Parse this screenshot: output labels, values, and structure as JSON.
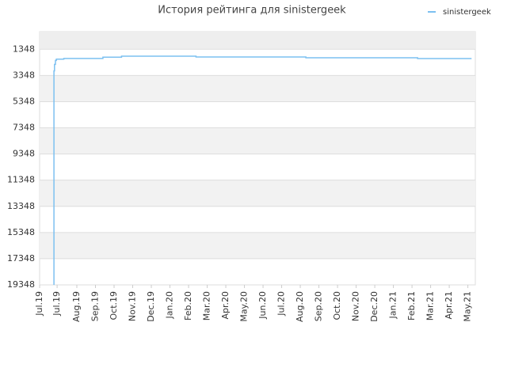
{
  "chart_data": {
    "type": "line",
    "title": "История рейтинга для sinistergeek",
    "ylim": [
      19348,
      0
    ],
    "yticks": [
      1348,
      3348,
      5348,
      7348,
      9348,
      11348,
      13348,
      15348,
      17348,
      19348
    ],
    "xlim": [
      0,
      23.4
    ],
    "xticks": [
      {
        "value": 0,
        "label": "Jul.19"
      },
      {
        "value": 0.94,
        "label": "Jul.19"
      },
      {
        "value": 2,
        "label": "Aug.19"
      },
      {
        "value": 3,
        "label": "Sep.19"
      },
      {
        "value": 4,
        "label": "Oct.19"
      },
      {
        "value": 5,
        "label": "Nov.19"
      },
      {
        "value": 6,
        "label": "Dec.19"
      },
      {
        "value": 7,
        "label": "Jan.20"
      },
      {
        "value": 8,
        "label": "Feb.20"
      },
      {
        "value": 9,
        "label": "Mar.20"
      },
      {
        "value": 10,
        "label": "Apr.20"
      },
      {
        "value": 11,
        "label": "May.20"
      },
      {
        "value": 12,
        "label": "Jun.20"
      },
      {
        "value": 13,
        "label": "Jul.20"
      },
      {
        "value": 14,
        "label": "Aug.20"
      },
      {
        "value": 15,
        "label": "Sep.20"
      },
      {
        "value": 16,
        "label": "Oct.20"
      },
      {
        "value": 17,
        "label": "Nov.20"
      },
      {
        "value": 18,
        "label": "Dec.20"
      },
      {
        "value": 19,
        "label": "Jan.21"
      },
      {
        "value": 20,
        "label": "Feb.21"
      },
      {
        "value": 21,
        "label": "Mar.21"
      },
      {
        "value": 22,
        "label": "Apr.21"
      },
      {
        "value": 23,
        "label": "May.21"
      }
    ],
    "grid": true,
    "legend": "top-right",
    "series": [
      {
        "name": "sinistergeek",
        "color": "#7cc0f0",
        "x": [
          0.77,
          0.77,
          0.8,
          0.85,
          0.9,
          1.3,
          3.4,
          4.4,
          8.4,
          14.3,
          20.3,
          23.2
        ],
        "values": [
          19348,
          3000,
          2500,
          2200,
          2100,
          2050,
          1950,
          1873,
          1933,
          1994,
          2054,
          2054
        ]
      }
    ]
  }
}
